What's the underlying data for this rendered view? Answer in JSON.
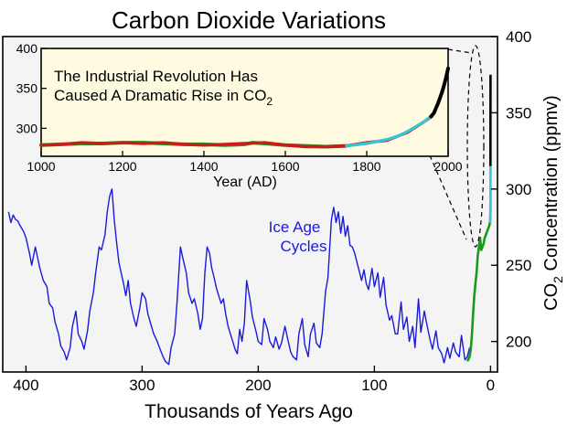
{
  "chart_data": [
    {
      "id": "main",
      "type": "line",
      "title": "Carbon Dioxide Variations",
      "xlabel": "Thousands of Years Ago",
      "ylabel_main": "CO",
      "ylabel_sub": "2",
      "ylabel_rest": " Concentration (ppmv)",
      "xlim": [
        420,
        -6
      ],
      "ylim": [
        180,
        400
      ],
      "xticks": [
        400,
        300,
        200,
        100,
        0
      ],
      "yticks": [
        200,
        250,
        300,
        350,
        400
      ],
      "y_axis_position": "right",
      "background_color": "#f4f4f4",
      "annotation": {
        "lines": [
          "Ice Age",
          "Cycles"
        ],
        "color": "#1a1adc"
      },
      "series": [
        {
          "color": "#1a1adc",
          "x": [
            415,
            413,
            411,
            409,
            407,
            405,
            402,
            400,
            397,
            395,
            392,
            390,
            388,
            385,
            382,
            380,
            377,
            375,
            372,
            370,
            367,
            365,
            362,
            360,
            357,
            355,
            352,
            350,
            347,
            345,
            342,
            340,
            337,
            335,
            332,
            330,
            328,
            326,
            324,
            322,
            320,
            318,
            316,
            314,
            312,
            310,
            307,
            305,
            302,
            300,
            297,
            295,
            292,
            290,
            287,
            285,
            282,
            280,
            277,
            275,
            272,
            270,
            267,
            265,
            262,
            260,
            257,
            255,
            252,
            250,
            248,
            246,
            244,
            242,
            240,
            238,
            236,
            234,
            232,
            230,
            228,
            226,
            224,
            222,
            220,
            218,
            216,
            214,
            212,
            210,
            207,
            205,
            202,
            200,
            197,
            195,
            192,
            190,
            187,
            185,
            182,
            180,
            177,
            175,
            172,
            170,
            167,
            165,
            162,
            160,
            157,
            155,
            152,
            150,
            147,
            145,
            142,
            140,
            137,
            135,
            133,
            131,
            129,
            127,
            125,
            123,
            121,
            119,
            117,
            115,
            113,
            111,
            109,
            107,
            105,
            102,
            100,
            97,
            95,
            92,
            90,
            87,
            85,
            82,
            80,
            77,
            75,
            72,
            70,
            67,
            65,
            62,
            60,
            57,
            55,
            52,
            50,
            47,
            45,
            42,
            40,
            37,
            35,
            32,
            30,
            27,
            25,
            22,
            20,
            18
          ],
          "y": [
            285,
            278,
            283,
            280,
            279,
            276,
            272,
            268,
            258,
            250,
            262,
            255,
            248,
            240,
            236,
            225,
            222,
            213,
            205,
            197,
            193,
            188,
            196,
            210,
            220,
            205,
            200,
            195,
            207,
            220,
            232,
            245,
            262,
            260,
            270,
            285,
            295,
            300,
            280,
            265,
            252,
            245,
            238,
            230,
            240,
            225,
            215,
            210,
            222,
            232,
            228,
            218,
            210,
            205,
            200,
            196,
            190,
            187,
            185,
            196,
            205,
            225,
            262,
            255,
            245,
            232,
            225,
            228,
            218,
            208,
            215,
            245,
            262,
            258,
            248,
            242,
            235,
            230,
            225,
            228,
            218,
            210,
            205,
            200,
            195,
            192,
            208,
            200,
            212,
            240,
            227,
            216,
            207,
            200,
            198,
            215,
            208,
            200,
            196,
            203,
            195,
            199,
            210,
            203,
            193,
            190,
            188,
            205,
            215,
            198,
            190,
            205,
            212,
            199,
            196,
            205,
            233,
            242,
            280,
            288,
            278,
            285,
            271,
            282,
            269,
            276,
            263,
            262,
            258,
            252,
            246,
            240,
            247,
            238,
            234,
            248,
            236,
            245,
            229,
            242,
            224,
            214,
            217,
            205,
            205,
            226,
            208,
            216,
            200,
            210,
            196,
            228,
            206,
            220,
            212,
            201,
            195,
            207,
            196,
            192,
            186,
            196,
            189,
            199,
            193,
            190,
            204,
            188,
            190,
            196
          ]
        },
        {
          "color": "#1a9a1a",
          "x": [
            20,
            18,
            17,
            16,
            15,
            14,
            13,
            12,
            11,
            10,
            9,
            8,
            7,
            6,
            5,
            4,
            3,
            2,
            1,
            0.5
          ],
          "y": [
            187,
            190,
            195,
            205,
            218,
            230,
            238,
            245,
            256,
            262,
            268,
            260,
            262,
            264,
            268,
            270,
            272,
            274,
            276,
            278
          ]
        },
        {
          "color": "#d01a1a",
          "x": [
            0.3,
            0.2,
            0.1,
            0.05
          ],
          "y": [
            278,
            280,
            285,
            300
          ]
        },
        {
          "color": "#33c6d6",
          "x": [
            0.25,
            0.2,
            0.15,
            0.1,
            0.05,
            0.02
          ],
          "y": [
            278,
            281,
            285,
            290,
            300,
            315
          ]
        },
        {
          "color": "#000000",
          "x": [
            0.05,
            0.03,
            0.01
          ],
          "y": [
            315,
            345,
            375
          ]
        }
      ]
    },
    {
      "id": "inset",
      "type": "line",
      "title": "",
      "annotation": {
        "line1": "The Industrial Revolution Has",
        "line2": "Caused A Dramatic Rise in CO",
        "line2_sub": "2"
      },
      "xlabel": "Year (AD)",
      "xlim": [
        1000,
        2000
      ],
      "ylim": [
        265,
        400
      ],
      "xticks": [
        1000,
        1200,
        1400,
        1600,
        1800,
        2000
      ],
      "yticks": [
        300,
        350,
        400
      ],
      "background_color": "#fffbe0",
      "series": [
        {
          "color": "#1a9a1a",
          "x": [
            1000,
            1050,
            1100,
            1150,
            1200,
            1250,
            1300,
            1350,
            1400,
            1450,
            1500,
            1520,
            1550,
            1600,
            1650,
            1700,
            1750
          ],
          "y": [
            279,
            280,
            281,
            281,
            282,
            282,
            281,
            280,
            280,
            279,
            280,
            282,
            281,
            279,
            278,
            277,
            278
          ]
        },
        {
          "color": "#d01a1a",
          "x": [
            1000,
            1050,
            1100,
            1150,
            1200,
            1250,
            1300,
            1350,
            1400,
            1450,
            1500,
            1550,
            1600,
            1650,
            1700,
            1750,
            1800,
            1850,
            1900,
            1940,
            1960
          ],
          "y": [
            279,
            280,
            282,
            281,
            282,
            281,
            282,
            280,
            279,
            280,
            281,
            282,
            279,
            277,
            277,
            278,
            282,
            285,
            295,
            308,
            315
          ]
        },
        {
          "color": "#33c6d6",
          "x": [
            1750,
            1800,
            1850,
            1880,
            1900,
            1920,
            1940,
            1960
          ],
          "y": [
            278,
            281,
            286,
            291,
            296,
            302,
            308,
            316
          ]
        },
        {
          "color": "#000000",
          "x": [
            1958,
            1965,
            1970,
            1975,
            1980,
            1985,
            1990,
            1995,
            2000
          ],
          "y": [
            315,
            319,
            325,
            331,
            338,
            345,
            354,
            364,
            375
          ]
        }
      ]
    }
  ]
}
